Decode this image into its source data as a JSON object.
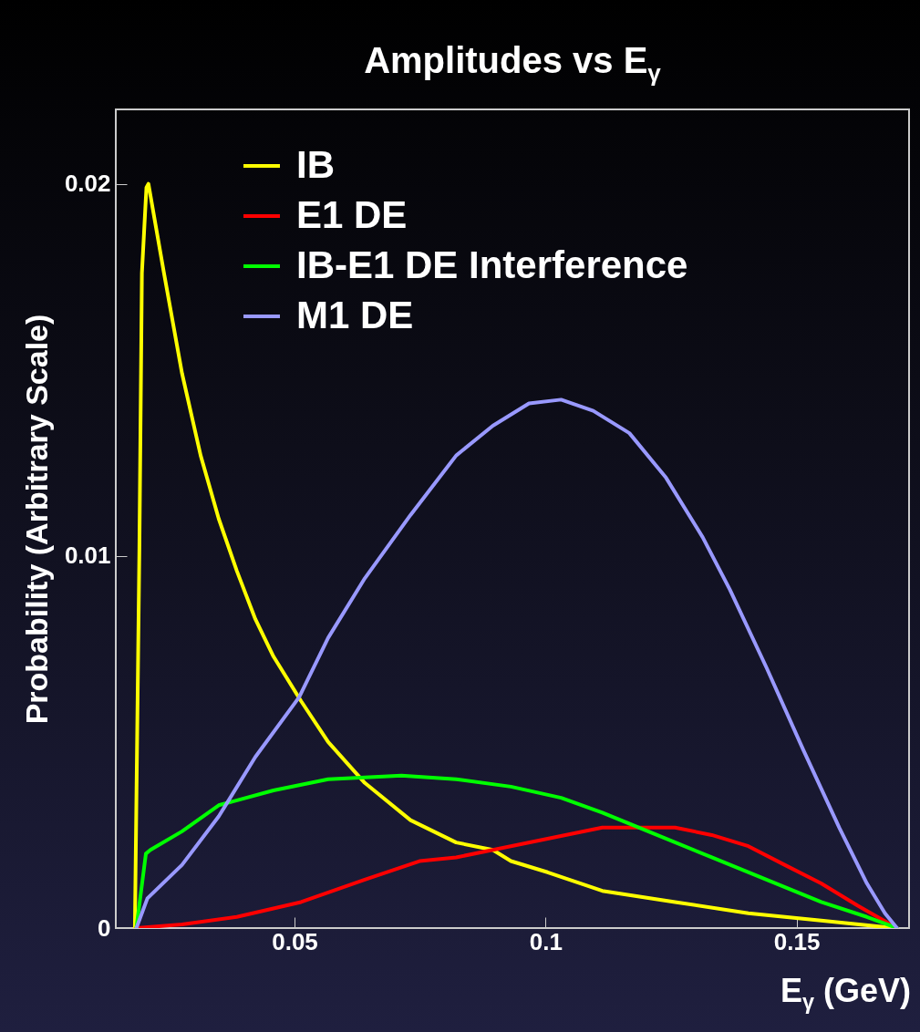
{
  "chart_data": {
    "type": "line",
    "title": "Amplitudes vs E$_{γ}$",
    "xlabel": "E$_{γ}$ (GeV)",
    "ylabel": "Probability (Arbitrary Scale)",
    "xlim": [
      0.0144,
      0.1724
    ],
    "xticks": [
      0.05,
      0.1,
      0.15
    ],
    "ylim": [
      0,
      0.022
    ],
    "yticks": [
      0,
      0.01,
      0.02
    ],
    "grid": false,
    "legend": "top left",
    "line_style": "solid",
    "marker": "none",
    "series": [
      {
        "name": "IB",
        "color": "#ffff00",
        "x": [
          0.0182,
          0.0191,
          0.0196,
          0.0205,
          0.0209,
          0.0218,
          0.024,
          0.0276,
          0.0313,
          0.0349,
          0.0385,
          0.0422,
          0.0458,
          0.0513,
          0.0567,
          0.064,
          0.0731,
          0.0822,
          0.0895,
          0.0931,
          0.1004,
          0.1113,
          0.1258,
          0.1404,
          0.1549,
          0.1695
        ],
        "values": [
          0,
          0.0102,
          0.0176,
          0.0199,
          0.02,
          0.0193,
          0.0176,
          0.0149,
          0.0127,
          0.011,
          0.0096,
          0.0083,
          0.0073,
          0.0061,
          0.005,
          0.0039,
          0.0029,
          0.0023,
          0.0021,
          0.0018,
          0.0015,
          0.001,
          0.0007,
          0.0004,
          0.0002,
          0
        ]
      },
      {
        "name": "E1 DE",
        "color": "#ff0000",
        "x": [
          0.0185,
          0.0276,
          0.0385,
          0.0513,
          0.064,
          0.0749,
          0.0822,
          0.0895,
          0.1004,
          0.1113,
          0.1185,
          0.1258,
          0.1331,
          0.1404,
          0.1476,
          0.1549,
          0.1622,
          0.17
        ],
        "values": [
          0,
          0.0001,
          0.0003,
          0.0007,
          0.0013,
          0.0018,
          0.0019,
          0.0021,
          0.0024,
          0.0027,
          0.0027,
          0.0027,
          0.0025,
          0.0022,
          0.0017,
          0.0012,
          0.0006,
          0
        ]
      },
      {
        "name": "IB-E1 DE Interference",
        "color": "#00ff00",
        "x": [
          0.0185,
          0.0204,
          0.0213,
          0.0276,
          0.0349,
          0.0458,
          0.0567,
          0.0713,
          0.0822,
          0.0931,
          0.1031,
          0.1113,
          0.1222,
          0.1331,
          0.144,
          0.1549,
          0.164,
          0.17
        ],
        "values": [
          0,
          0.002,
          0.0021,
          0.0026,
          0.0033,
          0.0037,
          0.004,
          0.0041,
          0.004,
          0.0038,
          0.0035,
          0.0031,
          0.0025,
          0.0019,
          0.0013,
          0.0007,
          0.0003,
          0
        ]
      },
      {
        "name": "M1 DE",
        "color": "#9999ff",
        "x": [
          0.0185,
          0.0207,
          0.0276,
          0.0349,
          0.0422,
          0.0509,
          0.0567,
          0.064,
          0.0731,
          0.0822,
          0.0895,
          0.0967,
          0.1031,
          0.1095,
          0.1167,
          0.124,
          0.1313,
          0.1367,
          0.144,
          0.1513,
          0.1585,
          0.164,
          0.1676,
          0.17
        ],
        "values": [
          0,
          0.0008,
          0.0017,
          0.003,
          0.0046,
          0.0062,
          0.0078,
          0.0094,
          0.0111,
          0.0127,
          0.0135,
          0.0141,
          0.0142,
          0.0139,
          0.0133,
          0.0121,
          0.0105,
          0.0091,
          0.007,
          0.0048,
          0.0027,
          0.0012,
          0.0004,
          0
        ]
      }
    ]
  }
}
